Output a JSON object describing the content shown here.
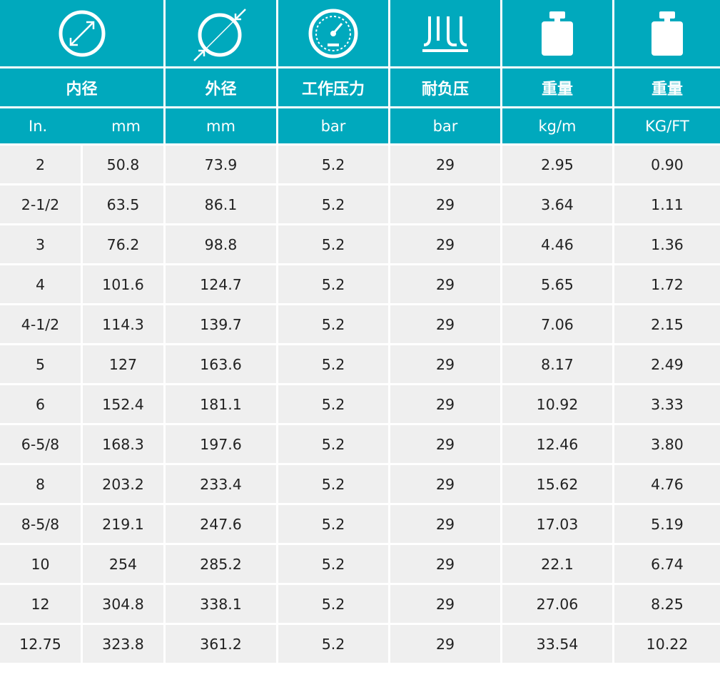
{
  "header": {
    "icons": [
      {
        "name": "inner-diameter-icon"
      },
      {
        "name": "outer-diameter-icon"
      },
      {
        "name": "pressure-gauge-icon"
      },
      {
        "name": "burst-pressure-icon"
      },
      {
        "name": "weight-icon"
      },
      {
        "name": "weight-icon"
      }
    ],
    "labels": [
      "内径",
      "外径",
      "工作压力",
      "耐负压",
      "重量",
      "重量"
    ],
    "units": [
      "In.",
      "mm",
      "mm",
      "bar",
      "bar",
      "kg/m",
      "KG/FT"
    ]
  },
  "rows": [
    [
      "2",
      "50.8",
      "73.9",
      "5.2",
      "29",
      "2.95",
      "0.90"
    ],
    [
      "2-1/2",
      "63.5",
      "86.1",
      "5.2",
      "29",
      "3.64",
      "1.11"
    ],
    [
      "3",
      "76.2",
      "98.8",
      "5.2",
      "29",
      "4.46",
      "1.36"
    ],
    [
      "4",
      "101.6",
      "124.7",
      "5.2",
      "29",
      "5.65",
      "1.72"
    ],
    [
      "4-1/2",
      "114.3",
      "139.7",
      "5.2",
      "29",
      "7.06",
      "2.15"
    ],
    [
      "5",
      "127",
      "163.6",
      "5.2",
      "29",
      "8.17",
      "2.49"
    ],
    [
      "6",
      "152.4",
      "181.1",
      "5.2",
      "29",
      "10.92",
      "3.33"
    ],
    [
      "6-5/8",
      "168.3",
      "197.6",
      "5.2",
      "29",
      "12.46",
      "3.80"
    ],
    [
      "8",
      "203.2",
      "233.4",
      "5.2",
      "29",
      "15.62",
      "4.76"
    ],
    [
      "8-5/8",
      "219.1",
      "247.6",
      "5.2",
      "29",
      "17.03",
      "5.19"
    ],
    [
      "10",
      "254",
      "285.2",
      "5.2",
      "29",
      "22.1",
      "6.74"
    ],
    [
      "12",
      "304.8",
      "338.1",
      "5.2",
      "29",
      "27.06",
      "8.25"
    ],
    [
      "12.75",
      "323.8",
      "361.2",
      "5.2",
      "29",
      "33.54",
      "10.22"
    ]
  ],
  "colors": {
    "header_bg": "#00a9bd",
    "row_bg": "#efefef",
    "header_text": "#ffffff"
  }
}
